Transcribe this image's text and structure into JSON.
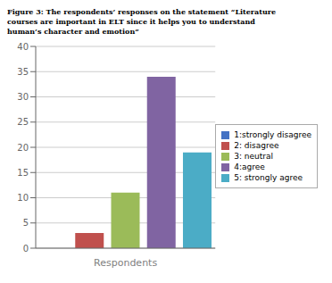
{
  "chart_data": {
    "type": "bar",
    "title": "Figure 3: The respondents’ responses on the statement “Literature\ncourses are important in ELT since it helps you to understand\nhuman’s character and emotion”",
    "xlabel": "Respondents",
    "categories": [
      "1:strongly disagree",
      "2: disagree",
      "3: neutral",
      "4:agree",
      "5: strongly agree"
    ],
    "values": [
      0,
      3,
      11,
      34,
      19
    ],
    "colors": [
      "#4472C4",
      "#C0504D",
      "#9BBB59",
      "#8064A2",
      "#4BACC6"
    ],
    "ylim": [
      0,
      40
    ],
    "yticks": [
      0,
      5,
      10,
      15,
      20,
      25,
      30,
      35,
      40
    ],
    "grid": true,
    "legend": "right"
  }
}
